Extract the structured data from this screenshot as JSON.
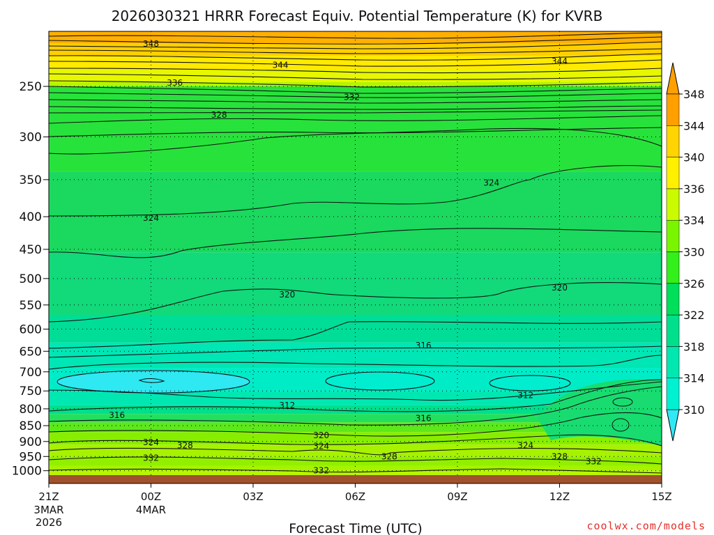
{
  "chart_data": {
    "type": "contour",
    "title": "2026030321 HRRR Forecast Equiv. Potential Temperature (K) for KVRB",
    "xlabel": "Forecast Time (UTC)",
    "ylabel": "",
    "credit": "coolwx.com/models",
    "x_ticks": [
      {
        "label": "21Z",
        "hour": 0,
        "sub1": "3MAR",
        "sub2": "2026"
      },
      {
        "label": "00Z",
        "hour": 3,
        "sub1": "4MAR",
        "sub2": ""
      },
      {
        "label": "03Z",
        "hour": 6,
        "sub1": "",
        "sub2": ""
      },
      {
        "label": "06Z",
        "hour": 9,
        "sub1": "",
        "sub2": ""
      },
      {
        "label": "09Z",
        "hour": 12,
        "sub1": "",
        "sub2": ""
      },
      {
        "label": "12Z",
        "hour": 15,
        "sub1": "",
        "sub2": ""
      },
      {
        "label": "15Z",
        "hour": 18,
        "sub1": "",
        "sub2": ""
      }
    ],
    "y_ticks": [
      250,
      300,
      350,
      400,
      450,
      500,
      550,
      600,
      650,
      700,
      750,
      800,
      850,
      900,
      950,
      1000
    ],
    "y_scale": "log-pressure",
    "colorbar": {
      "values": [
        310,
        314,
        318,
        322,
        326,
        330,
        334,
        336,
        340,
        344,
        348
      ],
      "colors": [
        "#33e8f5",
        "#00f0d2",
        "#00e8b0",
        "#00e08c",
        "#00df5a",
        "#33ef1a",
        "#7af500",
        "#cafb00",
        "#fff000",
        "#ffd400",
        "#ffa000"
      ],
      "labels": [
        "310",
        "314",
        "318",
        "322",
        "326",
        "330",
        "334",
        "336",
        "340",
        "344",
        "348"
      ],
      "extend": "both"
    },
    "profile": [
      {
        "hour": 0,
        "level_hPa": 200,
        "theta_e": 348
      },
      {
        "hour": 0,
        "level_hPa": 250,
        "theta_e": 336
      },
      {
        "hour": 0,
        "level_hPa": 300,
        "theta_e": 328
      },
      {
        "hour": 0,
        "level_hPa": 400,
        "theta_e": 324
      },
      {
        "hour": 0,
        "level_hPa": 500,
        "theta_e": 322
      },
      {
        "hour": 0,
        "level_hPa": 600,
        "theta_e": 320
      },
      {
        "hour": 0,
        "level_hPa": 700,
        "theta_e": 314
      },
      {
        "hour": 0,
        "level_hPa": 750,
        "theta_e": 312
      },
      {
        "hour": 0,
        "level_hPa": 800,
        "theta_e": 316
      },
      {
        "hour": 0,
        "level_hPa": 900,
        "theta_e": 324
      },
      {
        "hour": 0,
        "level_hPa": 1000,
        "theta_e": 332
      }
    ],
    "contour_labels": [
      {
        "text": "348",
        "hour": 3.0,
        "level": 210
      },
      {
        "text": "344",
        "hour": 6.8,
        "level": 227
      },
      {
        "text": "344",
        "hour": 15.0,
        "level": 224
      },
      {
        "text": "336",
        "hour": 3.7,
        "level": 247
      },
      {
        "text": "332",
        "hour": 8.9,
        "level": 260
      },
      {
        "text": "328",
        "hour": 5.0,
        "level": 277
      },
      {
        "text": "324",
        "hour": 13.0,
        "level": 354
      },
      {
        "text": "324",
        "hour": 3.0,
        "level": 402
      },
      {
        "text": "320",
        "hour": 7.0,
        "level": 530
      },
      {
        "text": "320",
        "hour": 15.0,
        "level": 517
      },
      {
        "text": "316",
        "hour": 11.0,
        "level": 637
      },
      {
        "text": "312",
        "hour": 14.0,
        "level": 762
      },
      {
        "text": "312",
        "hour": 7.0,
        "level": 790
      },
      {
        "text": "316",
        "hour": 2.0,
        "level": 818
      },
      {
        "text": "316",
        "hour": 11.0,
        "level": 828
      },
      {
        "text": "320",
        "hour": 8.0,
        "level": 880
      },
      {
        "text": "324",
        "hour": 3.0,
        "level": 903
      },
      {
        "text": "328",
        "hour": 4.0,
        "level": 913
      },
      {
        "text": "324",
        "hour": 8.0,
        "level": 915
      },
      {
        "text": "324",
        "hour": 14.0,
        "level": 913
      },
      {
        "text": "332",
        "hour": 3.0,
        "level": 955
      },
      {
        "text": "328",
        "hour": 10.0,
        "level": 950
      },
      {
        "text": "328",
        "hour": 15.0,
        "level": 950
      },
      {
        "text": "332",
        "hour": 16.0,
        "level": 967
      },
      {
        "text": "332",
        "hour": 8.0,
        "level": 1000
      }
    ]
  }
}
